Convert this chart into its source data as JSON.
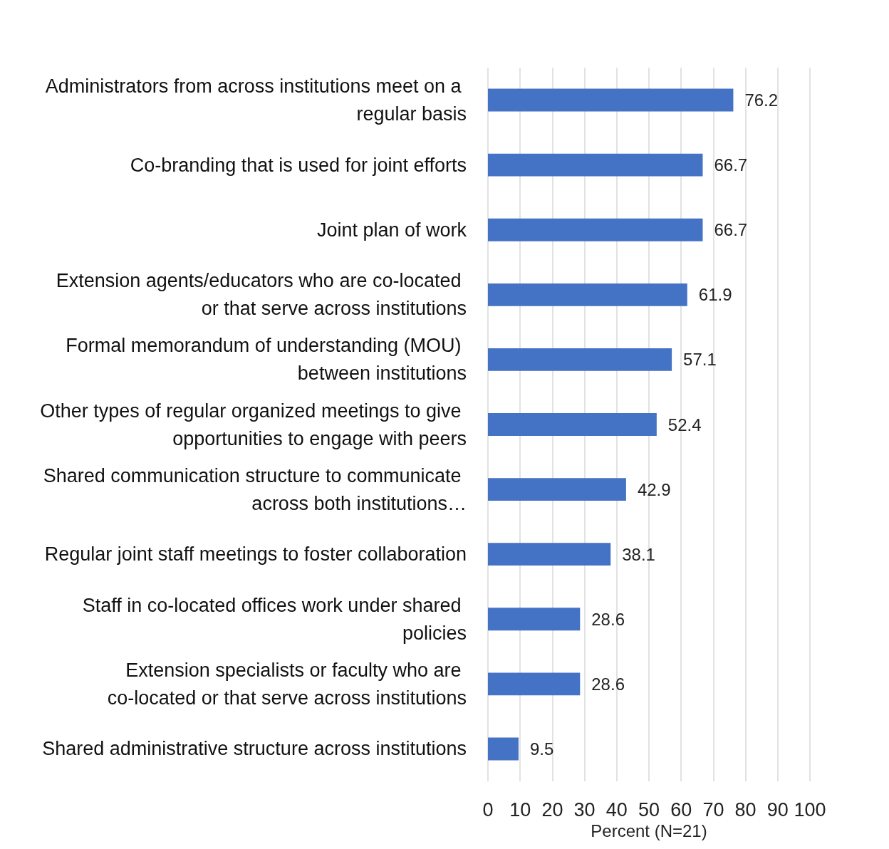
{
  "chart_data": {
    "type": "bar",
    "orientation": "horizontal",
    "xlabel": "Percent (N=21)",
    "categories": [
      "Administrators from across institutions meet on a regular basis",
      "Co-branding that is used for joint efforts",
      "Joint plan of work",
      "Extension agents/educators who are co-located or that serve across institutions",
      "Formal memorandum of understanding (MOU) between institutions",
      "Other types of regular organized meetings to give opportunities to engage with peers",
      "Shared communication structure to communicate across both institutions…",
      "Regular joint staff meetings to foster collaboration",
      "Staff in co-located offices work under shared policies",
      "Extension specialists or faculty who are co-located or that serve across institutions",
      "Shared administrative structure across institutions"
    ],
    "values": [
      76.2,
      66.7,
      66.7,
      61.9,
      57.1,
      52.4,
      42.9,
      38.1,
      28.6,
      28.6,
      9.5
    ],
    "color": "#4472c4",
    "xlim": [
      0,
      100
    ],
    "xticks": [
      0,
      10,
      20,
      30,
      40,
      50,
      60,
      70,
      80,
      90,
      100
    ],
    "grid": "x",
    "data_labels": true
  }
}
